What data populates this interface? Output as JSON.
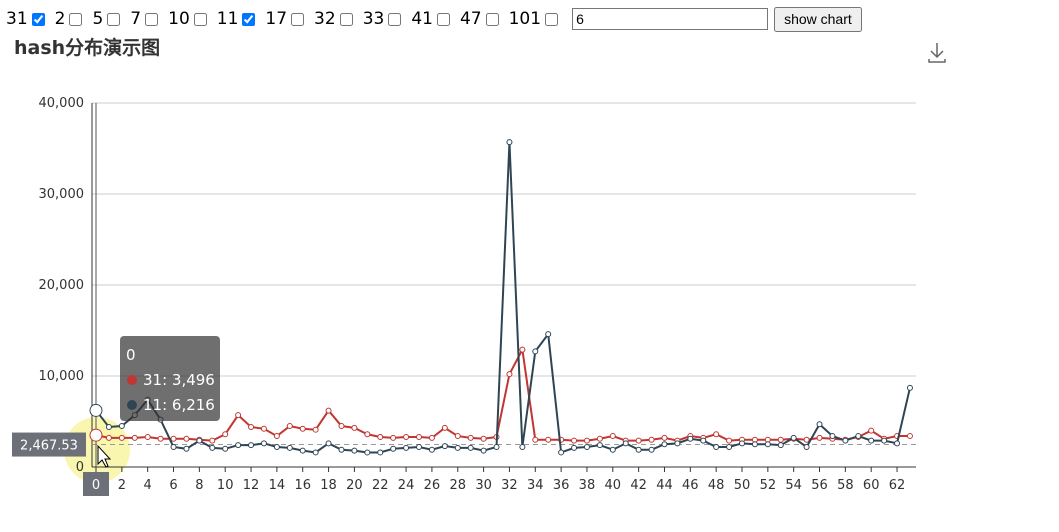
{
  "controls": {
    "options": [
      {
        "label": "31",
        "checked": true
      },
      {
        "label": "2",
        "checked": false
      },
      {
        "label": "5",
        "checked": false
      },
      {
        "label": "7",
        "checked": false
      },
      {
        "label": "10",
        "checked": false
      },
      {
        "label": "11",
        "checked": true
      },
      {
        "label": "17",
        "checked": false
      },
      {
        "label": "32",
        "checked": false
      },
      {
        "label": "33",
        "checked": false
      },
      {
        "label": "41",
        "checked": false
      },
      {
        "label": "47",
        "checked": false
      },
      {
        "label": "101",
        "checked": false
      }
    ],
    "input": "6",
    "button": "show chart"
  },
  "chart_data": {
    "type": "line",
    "title": "hash分布演示图",
    "categories": [
      "0",
      null,
      "2",
      null,
      "4",
      null,
      "6",
      null,
      "8",
      null,
      "10",
      null,
      "12",
      null,
      "14",
      null,
      "16",
      null,
      "18",
      null,
      "20",
      null,
      "22",
      null,
      "24",
      null,
      "26",
      null,
      "28",
      null,
      "30",
      null,
      "32",
      null,
      "34",
      null,
      "36",
      null,
      "38",
      null,
      "40",
      null,
      "42",
      null,
      "44",
      null,
      "46",
      null,
      "48",
      null,
      "50",
      null,
      "52",
      null,
      "54",
      null,
      "56",
      null,
      "58",
      null,
      "60",
      null,
      "62",
      null
    ],
    "series": [
      {
        "name": "31",
        "color": "#c23531",
        "values": [
          3496,
          3200,
          3200,
          3200,
          3300,
          3100,
          3100,
          3100,
          3000,
          2900,
          3600,
          5700,
          4400,
          4200,
          3400,
          4500,
          4200,
          4100,
          6200,
          4500,
          4300,
          3600,
          3300,
          3200,
          3300,
          3300,
          3200,
          4300,
          3400,
          3200,
          3100,
          3300,
          10200,
          12900,
          3000,
          3000,
          3000,
          2900,
          2900,
          3100,
          3400,
          2900,
          2900,
          3000,
          3200,
          2900,
          3400,
          3200,
          3600,
          2900,
          3000,
          3000,
          3000,
          3000,
          3100,
          3000,
          3200,
          3100,
          3000,
          3300,
          4000,
          3100,
          3400,
          3400
        ]
      },
      {
        "name": "11",
        "color": "#2f4554",
        "values": [
          6216,
          4400,
          4500,
          5700,
          7400,
          5200,
          2200,
          2000,
          2900,
          2100,
          2000,
          2400,
          2400,
          2600,
          2200,
          2100,
          1800,
          1600,
          2600,
          1900,
          1800,
          1600,
          1600,
          2000,
          2100,
          2200,
          1900,
          2300,
          2100,
          2100,
          1800,
          2200,
          35700,
          2200,
          12700,
          14600,
          1600,
          2100,
          2200,
          2400,
          1900,
          2600,
          1900,
          1900,
          2500,
          2600,
          3100,
          2900,
          2200,
          2200,
          2600,
          2500,
          2500,
          2400,
          3200,
          2200,
          4700,
          3400,
          2900,
          3400,
          2900,
          2900,
          2600,
          8700
        ]
      }
    ],
    "ylim": [
      0,
      40000
    ],
    "yticks": [
      0,
      {
        "value": 10000,
        "label": "10,000"
      },
      {
        "value": 20000,
        "label": "20,000"
      },
      {
        "value": 30000,
        "label": "30,000"
      },
      {
        "value": 40000,
        "label": "40,000"
      }
    ],
    "grid": true,
    "pointer": {
      "category": "0",
      "value": 2467.53,
      "label": "2,467.53"
    },
    "tooltip": {
      "title": "0",
      "entries": [
        "31: 3,496",
        "11: 6,216"
      ]
    }
  }
}
